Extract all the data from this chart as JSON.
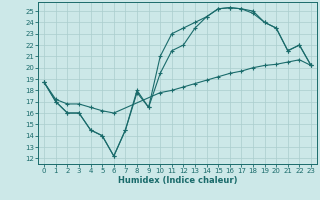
{
  "xlabel": "Humidex (Indice chaleur)",
  "bg_color": "#cce8e8",
  "grid_color": "#aacece",
  "line_color": "#1a6b6b",
  "xlim": [
    -0.5,
    23.5
  ],
  "ylim": [
    11.5,
    25.8
  ],
  "xticks": [
    0,
    1,
    2,
    3,
    4,
    5,
    6,
    7,
    8,
    9,
    10,
    11,
    12,
    13,
    14,
    15,
    16,
    17,
    18,
    19,
    20,
    21,
    22,
    23
  ],
  "yticks": [
    12,
    13,
    14,
    15,
    16,
    17,
    18,
    19,
    20,
    21,
    22,
    23,
    24,
    25
  ],
  "line1_x": [
    0,
    1,
    2,
    3,
    4,
    5,
    6,
    7,
    8,
    9,
    10,
    11,
    12,
    13,
    14,
    15,
    16,
    17,
    18,
    19,
    20,
    21,
    22,
    23
  ],
  "line1_y": [
    18.7,
    17.0,
    16.0,
    16.0,
    14.5,
    14.0,
    12.2,
    14.5,
    18.0,
    16.5,
    21.0,
    23.0,
    23.5,
    24.0,
    24.5,
    25.2,
    25.3,
    25.2,
    25.0,
    24.0,
    23.5,
    21.5,
    22.0,
    20.2
  ],
  "line2_x": [
    0,
    1,
    2,
    3,
    4,
    5,
    6,
    7,
    8,
    9,
    10,
    11,
    12,
    13,
    14,
    15,
    16,
    17,
    18,
    19,
    20,
    21,
    22,
    23
  ],
  "line2_y": [
    18.7,
    17.0,
    16.0,
    16.0,
    14.5,
    14.0,
    12.2,
    14.5,
    17.8,
    16.5,
    19.5,
    21.5,
    22.0,
    23.5,
    24.5,
    25.2,
    25.3,
    25.2,
    24.8,
    24.0,
    23.5,
    21.5,
    22.0,
    20.2
  ],
  "line3_x": [
    0,
    1,
    2,
    3,
    4,
    5,
    6,
    10,
    11,
    12,
    13,
    14,
    15,
    16,
    17,
    18,
    19,
    20,
    21,
    22,
    23
  ],
  "line3_y": [
    18.7,
    17.2,
    16.8,
    16.8,
    16.5,
    16.2,
    16.0,
    17.8,
    18.0,
    18.3,
    18.6,
    18.9,
    19.2,
    19.5,
    19.7,
    20.0,
    20.2,
    20.3,
    20.5,
    20.7,
    20.2
  ]
}
